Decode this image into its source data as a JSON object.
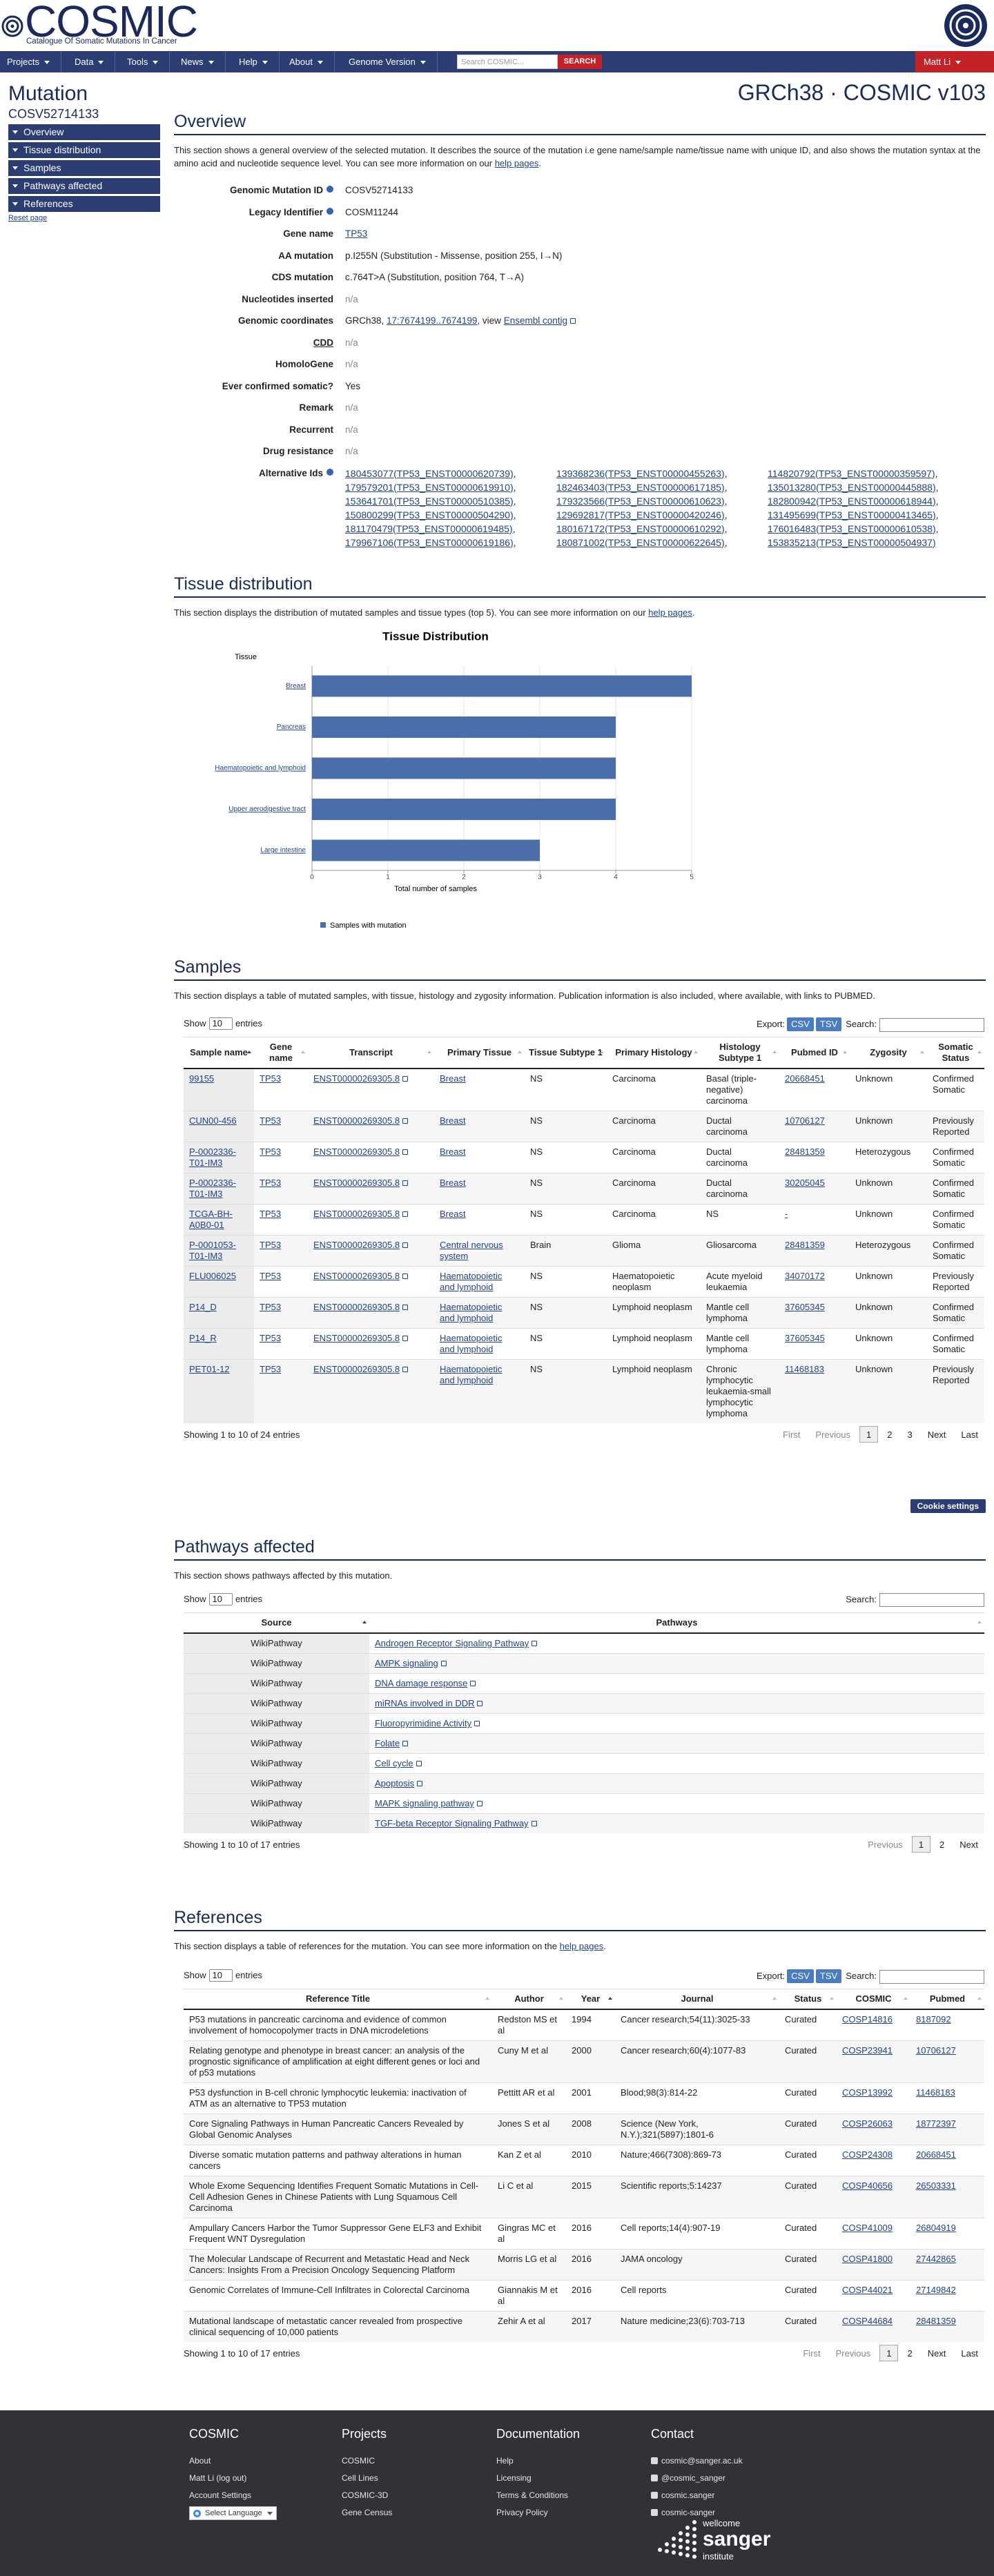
{
  "header": {
    "logo": "COSMIC",
    "tagline": "Catalogue Of Somatic Mutations In Cancer"
  },
  "nav": {
    "items": [
      "Projects",
      "Data",
      "Tools",
      "News",
      "Help",
      "About",
      "Genome Version"
    ],
    "search_placeholder": "Search COSMIC...",
    "search_button": "SEARCH",
    "user": "Matt Li"
  },
  "sidebar": {
    "title": "Mutation",
    "id": "COSV52714133",
    "items": [
      "Overview",
      "Tissue distribution",
      "Samples",
      "Pathways affected",
      "References"
    ],
    "reset": "Reset page"
  },
  "version": "GRCh38 · COSMIC v103",
  "table_controls": {
    "show": "Show",
    "length": "10",
    "entries": "entries",
    "export": "Export:",
    "csv": "CSV",
    "tsv": "TSV",
    "search": "Search:"
  },
  "overview": {
    "heading": "Overview",
    "intro": [
      "This section shows a general overview of the selected mutation. It describes the source of the mutation i.e gene name/sample name/tissue name with unique ID, and also shows the mutation syntax at the amino acid and nucleotide sequence level. You can see more information on our ",
      "help pages",
      "."
    ],
    "fields": [
      {
        "label": "Genomic Mutation ID",
        "info": true,
        "value": "COSV52714133"
      },
      {
        "label": "Legacy Identifier",
        "info": true,
        "value": "COSM11244"
      },
      {
        "label": "Gene name",
        "value": "TP53",
        "link": true
      },
      {
        "label": "AA mutation",
        "value": "p.I255N (Substitution - Missense, position 255, I→N)"
      },
      {
        "label": "CDS mutation",
        "value": "c.764T>A (Substitution, position 764, T→A)"
      },
      {
        "label": "Nucleotides inserted",
        "value": "n/a"
      },
      {
        "label": "Genomic coordinates",
        "value": [
          "GRCh38, ",
          "17:7674199..7674199",
          ", view ",
          "Ensembl contig"
        ]
      },
      {
        "label": "CDD",
        "underline": true,
        "value": "n/a"
      },
      {
        "label": "HomoloGene",
        "value": "n/a"
      },
      {
        "label": "Ever confirmed somatic?",
        "value": "Yes"
      },
      {
        "label": "Remark",
        "value": "n/a"
      },
      {
        "label": "Recurrent",
        "value": "n/a"
      },
      {
        "label": "Drug resistance",
        "value": "n/a"
      },
      {
        "label": "Alternative Ids",
        "info": true,
        "separator": ",",
        "values": [
          "180453077(TP53_ENST00000620739)",
          "139368236(TP53_ENST00000455263)",
          "114820792(TP53_ENST00000359597)",
          "179579201(TP53_ENST00000619910)",
          "182463403(TP53_ENST00000617185)",
          "135013280(TP53_ENST00000445888)",
          "153641701(TP53_ENST00000510385)",
          "179323566(TP53_ENST00000610623)",
          "182800942(TP53_ENST00000618944)",
          "150800299(TP53_ENST00000504290)",
          "129692817(TP53_ENST00000420246)",
          "131495699(TP53_ENST00000413465)",
          "181170479(TP53_ENST00000619485)",
          "180167172(TP53_ENST00000610292)",
          "176016483(TP53_ENST00000610538)",
          "179967106(TP53_ENST00000619186)",
          "180871002(TP53_ENST00000622645)",
          "153835213(TP53_ENST00000504937)"
        ]
      }
    ]
  },
  "tissue": {
    "heading": "Tissue distribution",
    "intro": [
      "This section displays the distribution of mutated samples and tissue types (top 5). You can see more information on our ",
      "help pages",
      "."
    ]
  },
  "chart_data": {
    "type": "bar",
    "horizontal": true,
    "title": "Tissue Distribution",
    "ylabel": "Tissue",
    "xlabel": "Total number of samples",
    "categories": [
      "Breast",
      "Pancreas",
      "Haematopoietic and lymphoid",
      "Upper aerodigestive tract",
      "Large intestine"
    ],
    "series": [
      {
        "name": "Samples with mutation",
        "color": "#4a6ea9",
        "values": [
          5,
          4,
          4,
          4,
          3
        ]
      }
    ],
    "xlim": [
      0,
      5
    ],
    "xticks": [
      0,
      1,
      2,
      3,
      4,
      5
    ],
    "grid": true
  },
  "samples": {
    "heading": "Samples",
    "intro": "This section displays a table of mutated samples, with tissue, histology and zygosity information. Publication information is also included, where available, with links to PUBMED.",
    "columns": [
      "Sample name",
      "Gene name",
      "Transcript",
      "Primary Tissue",
      "Tissue Subtype 1",
      "Primary Histology",
      "Histology Subtype 1",
      "Pubmed ID",
      "Zygosity",
      "Somatic Status"
    ],
    "rows": [
      [
        "99155",
        "TP53",
        "ENST00000269305.8",
        "Breast",
        "NS",
        "Carcinoma",
        "Basal (triple-negative) carcinoma",
        "20668451",
        "Unknown",
        "Confirmed Somatic"
      ],
      [
        "CUN00-456",
        "TP53",
        "ENST00000269305.8",
        "Breast",
        "NS",
        "Carcinoma",
        "Ductal carcinoma",
        "10706127",
        "Unknown",
        "Previously Reported"
      ],
      [
        "P-0002336-T01-IM3",
        "TP53",
        "ENST00000269305.8",
        "Breast",
        "NS",
        "Carcinoma",
        "Ductal carcinoma",
        "28481359",
        "Heterozygous",
        "Confirmed Somatic"
      ],
      [
        "P-0002336-T01-IM3",
        "TP53",
        "ENST00000269305.8",
        "Breast",
        "NS",
        "Carcinoma",
        "Ductal carcinoma",
        "30205045",
        "Unknown",
        "Confirmed Somatic"
      ],
      [
        "TCGA-BH-A0B0-01",
        "TP53",
        "ENST00000269305.8",
        "Breast",
        "NS",
        "Carcinoma",
        "NS",
        "-",
        "Unknown",
        "Confirmed Somatic"
      ],
      [
        "P-0001053-T01-IM3",
        "TP53",
        "ENST00000269305.8",
        "Central nervous system",
        "Brain",
        "Glioma",
        "Gliosarcoma",
        "28481359",
        "Heterozygous",
        "Confirmed Somatic"
      ],
      [
        "FLU006025",
        "TP53",
        "ENST00000269305.8",
        "Haematopoietic and lymphoid",
        "NS",
        "Haematopoietic neoplasm",
        "Acute myeloid leukaemia",
        "34070172",
        "Unknown",
        "Previously Reported"
      ],
      [
        "P14_D",
        "TP53",
        "ENST00000269305.8",
        "Haematopoietic and lymphoid",
        "NS",
        "Lymphoid neoplasm",
        "Mantle cell lymphoma",
        "37605345",
        "Unknown",
        "Confirmed Somatic"
      ],
      [
        "P14_R",
        "TP53",
        "ENST00000269305.8",
        "Haematopoietic and lymphoid",
        "NS",
        "Lymphoid neoplasm",
        "Mantle cell lymphoma",
        "37605345",
        "Unknown",
        "Confirmed Somatic"
      ],
      [
        "PET01-12",
        "TP53",
        "ENST00000269305.8",
        "Haematopoietic and lymphoid",
        "NS",
        "Lymphoid neoplasm",
        "Chronic lymphocytic leukaemia-small lymphocytic lymphoma",
        "11468183",
        "Unknown",
        "Previously Reported"
      ]
    ],
    "info": "Showing 1 to 10 of 24 entries",
    "pagination": [
      "First",
      "Previous",
      "1",
      "2",
      "3",
      "Next",
      "Last"
    ]
  },
  "cookie": "Cookie settings",
  "pathways": {
    "heading": "Pathways affected",
    "intro": "This section shows pathways affected by this mutation.",
    "columns": [
      "Source",
      "Pathways"
    ],
    "rows": [
      [
        "WikiPathway",
        "Androgen Receptor Signaling Pathway"
      ],
      [
        "WikiPathway",
        "AMPK signaling"
      ],
      [
        "WikiPathway",
        "DNA damage response"
      ],
      [
        "WikiPathway",
        "miRNAs involved in DDR"
      ],
      [
        "WikiPathway",
        "Fluoropyrimidine Activity"
      ],
      [
        "WikiPathway",
        "Folate"
      ],
      [
        "WikiPathway",
        "Cell cycle"
      ],
      [
        "WikiPathway",
        "Apoptosis"
      ],
      [
        "WikiPathway",
        "MAPK signaling pathway"
      ],
      [
        "WikiPathway",
        "TGF-beta Receptor Signaling Pathway"
      ]
    ],
    "info": "Showing 1 to 10 of 17 entries",
    "pagination": [
      "Previous",
      "1",
      "2",
      "Next"
    ]
  },
  "references": {
    "heading": "References",
    "intro": [
      "This section displays a table of references for the mutation. You can see more information on the ",
      "help pages",
      "."
    ],
    "columns": [
      "Reference Title",
      "Author",
      "Year",
      "Journal",
      "Status",
      "COSMIC",
      "Pubmed"
    ],
    "rows": [
      [
        "P53 mutations in pancreatic carcinoma and evidence of common involvement of homocopolymer tracts in DNA microdeletions",
        "Redston MS et al",
        "1994",
        "Cancer research;54(11):3025-33",
        "Curated",
        "COSP14816",
        "8187092"
      ],
      [
        "Relating genotype and phenotype in breast cancer: an analysis of the prognostic significance of amplification at eight different genes or loci and of p53 mutations",
        "Cuny M et al",
        "2000",
        "Cancer research;60(4):1077-83",
        "Curated",
        "COSP23941",
        "10706127"
      ],
      [
        "P53 dysfunction in B-cell chronic lymphocytic leukemia: inactivation of ATM as an alternative to TP53 mutation",
        "Pettitt AR et al",
        "2001",
        "Blood;98(3):814-22",
        "Curated",
        "COSP13992",
        "11468183"
      ],
      [
        "Core Signaling Pathways in Human Pancreatic Cancers Revealed by Global Genomic Analyses",
        "Jones S et al",
        "2008",
        "Science (New York, N.Y.);321(5897):1801-6",
        "Curated",
        "COSP26063",
        "18772397"
      ],
      [
        "Diverse somatic mutation patterns and pathway alterations in human cancers",
        "Kan Z et al",
        "2010",
        "Nature;466(7308):869-73",
        "Curated",
        "COSP24308",
        "20668451"
      ],
      [
        "Whole Exome Sequencing Identifies Frequent Somatic Mutations in Cell-Cell Adhesion Genes in Chinese Patients with Lung Squamous Cell Carcinoma",
        "Li C et al",
        "2015",
        "Scientific reports;5:14237",
        "Curated",
        "COSP40656",
        "26503331"
      ],
      [
        "Ampullary Cancers Harbor the Tumor Suppressor Gene ELF3 and Exhibit Frequent WNT Dysregulation",
        "Gingras MC et al",
        "2016",
        "Cell reports;14(4):907-19",
        "Curated",
        "COSP41009",
        "26804919"
      ],
      [
        "The Molecular Landscape of Recurrent and Metastatic Head and Neck Cancers: Insights From a Precision Oncology Sequencing Platform",
        "Morris LG et al",
        "2016",
        "JAMA oncology",
        "Curated",
        "COSP41800",
        "27442865"
      ],
      [
        "Genomic Correlates of Immune-Cell Infiltrates in Colorectal Carcinoma",
        "Giannakis M et al",
        "2016",
        "Cell reports",
        "Curated",
        "COSP44021",
        "27149842"
      ],
      [
        "Mutational landscape of metastatic cancer revealed from prospective clinical sequencing of 10,000 patients",
        "Zehir A et al",
        "2017",
        "Nature medicine;23(6):703-713",
        "Curated",
        "COSP44684",
        "28481359"
      ]
    ],
    "info": "Showing 1 to 10 of 17 entries",
    "pagination": [
      "First",
      "Previous",
      "1",
      "2",
      "Next",
      "Last"
    ]
  },
  "footer": {
    "columns": [
      {
        "title": "COSMIC",
        "links": [
          "About",
          "Matt Li (log out)",
          "Account Settings"
        ]
      },
      {
        "title": "Projects",
        "links": [
          "COSMIC",
          "Cell Lines",
          "COSMIC-3D",
          "Gene Census"
        ]
      },
      {
        "title": "Documentation",
        "links": [
          "Help",
          "Licensing",
          "Terms & Conditions",
          "Privacy Policy"
        ]
      },
      {
        "title": "Contact",
        "links": [
          "cosmic@sanger.ac.uk",
          "@cosmic_sanger",
          "cosmic.sanger",
          "cosmic-sanger"
        ]
      }
    ],
    "language": "Select Language",
    "sanger": [
      "wellcome",
      "sanger",
      "institute"
    ]
  }
}
